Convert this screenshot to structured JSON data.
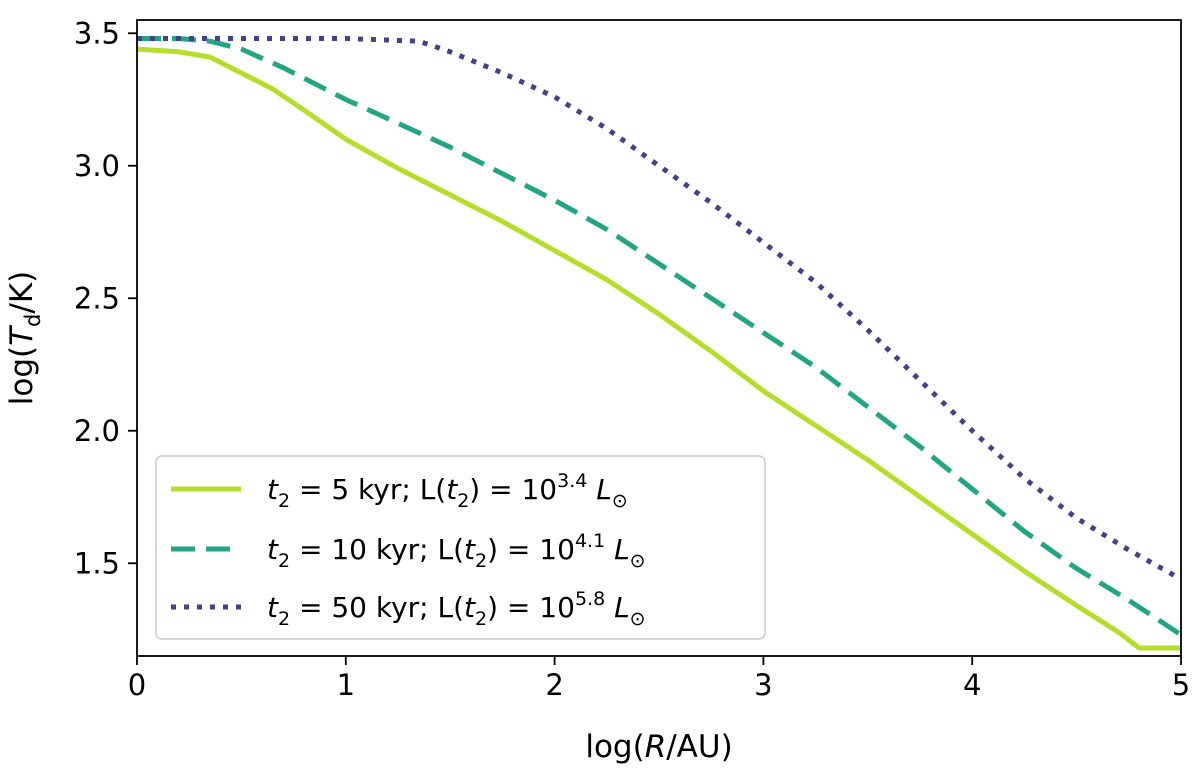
{
  "chart_data": {
    "type": "line",
    "title": "",
    "xlabel": "log(R/AU)",
    "ylabel": "log(T_d/K)",
    "xlim": [
      0,
      5
    ],
    "ylim": [
      1.15,
      3.55
    ],
    "xticks": [
      {
        "value": 0,
        "label": "0"
      },
      {
        "value": 1,
        "label": "1"
      },
      {
        "value": 2,
        "label": "2"
      },
      {
        "value": 3,
        "label": "3"
      },
      {
        "value": 4,
        "label": "4"
      },
      {
        "value": 5,
        "label": "5"
      }
    ],
    "yticks": [
      {
        "value": 1.5,
        "label": "1.5"
      },
      {
        "value": 2.0,
        "label": "2.0"
      },
      {
        "value": 2.5,
        "label": "2.5"
      },
      {
        "value": 3.0,
        "label": "3.0"
      },
      {
        "value": 3.5,
        "label": "3.5"
      }
    ],
    "grid": false,
    "legend_position": "lower-left",
    "series": [
      {
        "name": "t2 = 5 kyr; L(t2) = 10^3.4 L_sun",
        "t_value": "5",
        "t_gap": "   ",
        "unit": "kyr;",
        "lum_exponent": "3.4",
        "color": "#b5de2b",
        "dash": "solid",
        "x": [
          0,
          0.2,
          0.35,
          0.5,
          0.65,
          0.8,
          1.0,
          1.25,
          1.5,
          1.75,
          2.0,
          2.25,
          2.5,
          2.75,
          3.0,
          3.25,
          3.5,
          3.75,
          4.0,
          4.25,
          4.5,
          4.7,
          4.8,
          5.0
        ],
        "y": [
          3.44,
          3.43,
          3.41,
          3.35,
          3.29,
          3.21,
          3.1,
          2.99,
          2.89,
          2.79,
          2.68,
          2.57,
          2.44,
          2.3,
          2.15,
          2.02,
          1.89,
          1.75,
          1.61,
          1.47,
          1.34,
          1.24,
          1.18,
          1.18
        ]
      },
      {
        "name": "t2 = 10 kyr; L(t2) = 10^4.1 L_sun",
        "t_value": "10",
        "t_gap": " ",
        "unit": "kyr;",
        "lum_exponent": "4.1",
        "color": "#21a585",
        "dash": "dashed",
        "x": [
          0,
          0.2,
          0.35,
          0.5,
          0.7,
          1.0,
          1.25,
          1.5,
          1.75,
          2.0,
          2.25,
          2.5,
          2.75,
          3.0,
          3.25,
          3.5,
          3.75,
          4.0,
          4.25,
          4.5,
          4.75,
          5.0
        ],
        "y": [
          3.48,
          3.48,
          3.47,
          3.44,
          3.37,
          3.25,
          3.16,
          3.07,
          2.97,
          2.87,
          2.76,
          2.63,
          2.5,
          2.37,
          2.24,
          2.09,
          1.94,
          1.78,
          1.62,
          1.48,
          1.36,
          1.23
        ]
      },
      {
        "name": "t2 = 50 kyr; L(t2) = 10^5.8 L_sun",
        "t_value": "50",
        "t_gap": " ",
        "unit": "kyr;",
        "lum_exponent": "5.8",
        "color": "#404387",
        "dash": "dotted",
        "x": [
          0,
          0.5,
          1.0,
          1.35,
          1.5,
          1.75,
          2.0,
          2.25,
          2.5,
          2.75,
          3.0,
          3.25,
          3.5,
          3.75,
          4.0,
          4.25,
          4.5,
          4.75,
          5.0
        ],
        "y": [
          3.48,
          3.48,
          3.48,
          3.47,
          3.43,
          3.35,
          3.26,
          3.14,
          3.0,
          2.86,
          2.71,
          2.56,
          2.38,
          2.19,
          2.0,
          1.82,
          1.67,
          1.55,
          1.44
        ]
      }
    ]
  }
}
